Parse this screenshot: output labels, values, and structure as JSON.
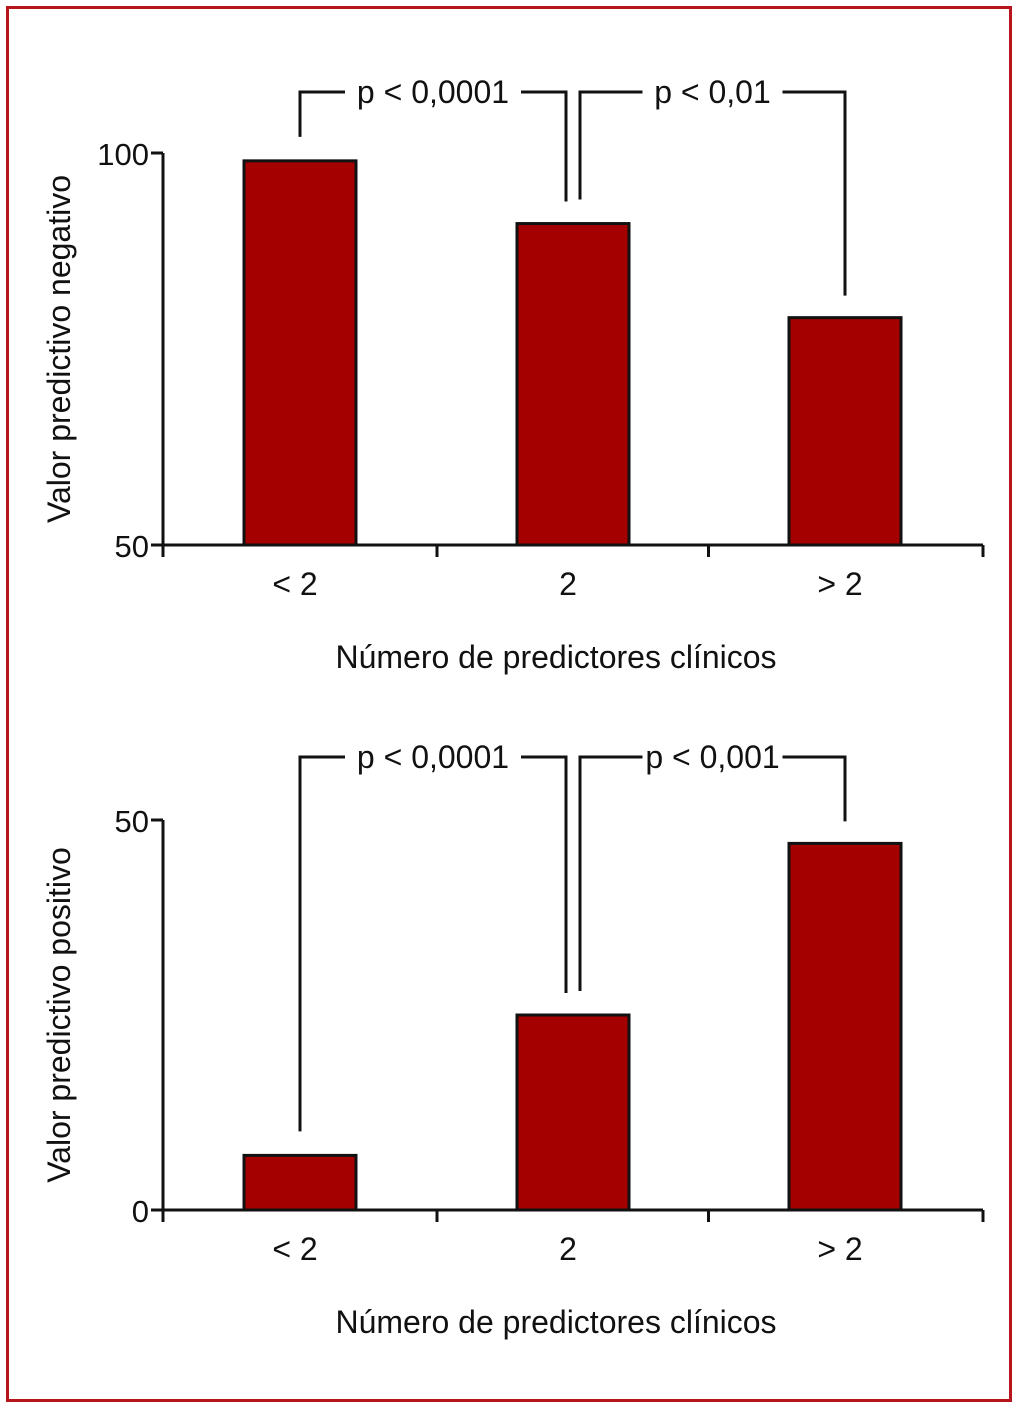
{
  "colors": {
    "bar": "#a50000",
    "frame": "#b8141c",
    "ink": "#111111"
  },
  "chart_data": [
    {
      "type": "bar",
      "categories": [
        "< 2",
        "2",
        "> 2"
      ],
      "values": [
        99,
        91,
        79
      ],
      "ylabel": "Valor predictivo negativo",
      "xlabel": "Número de predictores clínicos",
      "ylim": [
        50,
        100
      ],
      "yticks": [
        "100",
        "50"
      ],
      "grid": false,
      "annotations": [
        {
          "from": 0,
          "to": 1,
          "text": "p < 0,0001"
        },
        {
          "from": 1,
          "to": 2,
          "text": "p < 0,01"
        }
      ]
    },
    {
      "type": "bar",
      "categories": [
        "< 2",
        "2",
        "> 2"
      ],
      "values": [
        7,
        25,
        47
      ],
      "ylabel": "Valor predictivo positivo",
      "xlabel": "Número de predictores clínicos",
      "ylim": [
        0,
        50
      ],
      "yticks": [
        "50",
        "0"
      ],
      "grid": false,
      "annotations": [
        {
          "from": 0,
          "to": 1,
          "text": "p < 0,0001"
        },
        {
          "from": 1,
          "to": 2,
          "text": "p < 0,001"
        }
      ]
    }
  ]
}
